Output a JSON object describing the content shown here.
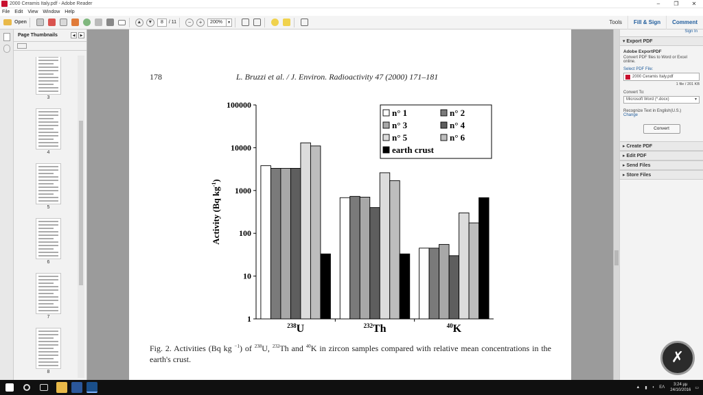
{
  "window": {
    "title": "2000 Ceramis Italy.pdf - Adobe Reader",
    "minimize": "–",
    "maximize": "❐",
    "close": "✕"
  },
  "menu": [
    "File",
    "Edit",
    "View",
    "Window",
    "Help"
  ],
  "toolbar": {
    "open_label": "Open",
    "page_current": "8",
    "page_total": "/ 11",
    "zoom": "200%",
    "tools": "Tools",
    "fill_sign": "Fill & Sign",
    "comment": "Comment"
  },
  "thumbnails": {
    "title": "Page Thumbnails",
    "pages": [
      "3",
      "4",
      "5",
      "6",
      "7",
      "8"
    ]
  },
  "document": {
    "page_number": "178",
    "journal": "L. Bruzzi et al. / J. Environ. Radioactivity 47 (2000) 171–181",
    "caption_parts": {
      "a": "Fig. 2. Activities (Bq kg ",
      "a_sup": "−1",
      "b": ") of ",
      "u_sup": "238",
      "u": "U, ",
      "th_sup": "232",
      "th": "Th and ",
      "k_sup": "40",
      "k": "K in zircon samples compared with relative mean concentrations in the earth's crust."
    }
  },
  "chart_data": {
    "type": "bar",
    "yscale": "log",
    "ylim": [
      1,
      100000
    ],
    "ylabel": "Activity (Bq kg-1)",
    "yticks": [
      "1",
      "10",
      "100",
      "1000",
      "10000",
      "100000"
    ],
    "categories": [
      {
        "sup": "238",
        "base": "U"
      },
      {
        "sup": "232",
        "base": "Th"
      },
      {
        "sup": "40",
        "base": "K"
      }
    ],
    "series": [
      {
        "name": "n° 1",
        "color": "#ffffff",
        "values": [
          3800,
          680,
          45
        ]
      },
      {
        "name": "n° 2",
        "color": "#7a7a7a",
        "values": [
          3300,
          730,
          45
        ]
      },
      {
        "name": "n° 3",
        "color": "#a8a8a8",
        "values": [
          3300,
          700,
          55
        ]
      },
      {
        "name": "n° 4",
        "color": "#5e5e5e",
        "values": [
          3300,
          400,
          30
        ]
      },
      {
        "name": "n° 5",
        "color": "#dcdcdc",
        "values": [
          13000,
          2600,
          300
        ]
      },
      {
        "name": "n° 6",
        "color": "#bdbdbd",
        "values": [
          11000,
          1700,
          175
        ]
      },
      {
        "name": "earth crust",
        "color": "#000000",
        "values": [
          33,
          33,
          680
        ]
      }
    ],
    "legend_position": "top-right"
  },
  "right_panel": {
    "sign_in": "Sign In",
    "export_pdf": "Export PDF",
    "exportpdf_title": "Adobe ExportPDF",
    "exportpdf_desc": "Convert PDF files to Word or Excel online.",
    "select_file": "Select PDF File:",
    "file_name": "2000 Ceramis Italy.pdf",
    "file_meta": "1 file / 201 KB",
    "convert_to": "Convert To:",
    "convert_format": "Microsoft Word (*.docx)",
    "recognize": "Recognize Text in English(U.S.)",
    "change": "Change",
    "convert_button": "Convert",
    "sections": [
      "Create PDF",
      "Edit PDF",
      "Send Files",
      "Store Files"
    ]
  },
  "taskbar": {
    "lang": "ΕΛ",
    "time": "3:24 μμ",
    "date": "24/10/2016"
  }
}
